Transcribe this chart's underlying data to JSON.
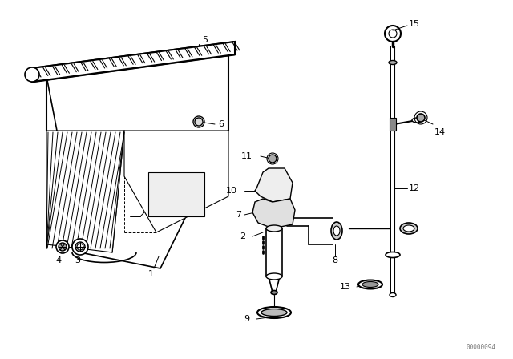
{
  "bg_color": "#ffffff",
  "line_color": "#000000",
  "fig_width": 6.4,
  "fig_height": 4.48,
  "dpi": 100,
  "watermark": "00000094"
}
